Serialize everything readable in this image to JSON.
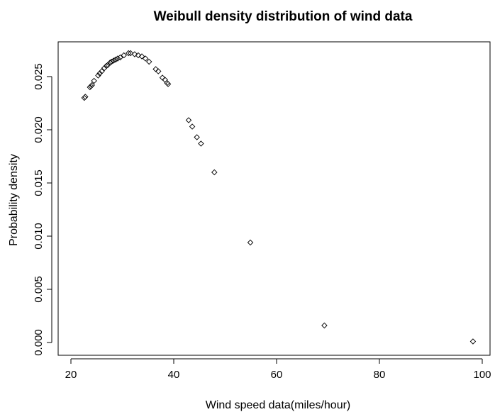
{
  "chart_data": {
    "type": "scatter",
    "title": "Weibull density distribution of wind data",
    "xlabel": "Wind speed data(miles/hour)",
    "ylabel": "Probability density",
    "xlim": [
      20,
      100
    ],
    "ylim": [
      0,
      0.027
    ],
    "x_ticks": [
      20,
      40,
      60,
      80,
      100
    ],
    "x_tick_labels": [
      "20",
      "40",
      "60",
      "80",
      "100"
    ],
    "y_ticks": [
      0.0,
      0.005,
      0.01,
      0.015,
      0.02,
      0.025
    ],
    "y_tick_labels": [
      "0.000",
      "0.005",
      "0.010",
      "0.015",
      "0.020",
      "0.025"
    ],
    "marker": "open-diamond",
    "grid": false,
    "series": [
      {
        "points": [
          {
            "x": 22.6,
            "y": 0.023
          },
          {
            "x": 22.8,
            "y": 0.0231
          },
          {
            "x": 23.7,
            "y": 0.024
          },
          {
            "x": 23.9,
            "y": 0.0241
          },
          {
            "x": 24.1,
            "y": 0.0242
          },
          {
            "x": 24.5,
            "y": 0.0246
          },
          {
            "x": 25.3,
            "y": 0.0251
          },
          {
            "x": 25.6,
            "y": 0.0253
          },
          {
            "x": 26.0,
            "y": 0.0255
          },
          {
            "x": 26.5,
            "y": 0.0258
          },
          {
            "x": 26.9,
            "y": 0.026
          },
          {
            "x": 27.2,
            "y": 0.0261
          },
          {
            "x": 27.6,
            "y": 0.0263
          },
          {
            "x": 27.9,
            "y": 0.0264
          },
          {
            "x": 28.3,
            "y": 0.0265
          },
          {
            "x": 28.7,
            "y": 0.0266
          },
          {
            "x": 29.1,
            "y": 0.0267
          },
          {
            "x": 29.6,
            "y": 0.0268
          },
          {
            "x": 30.3,
            "y": 0.027
          },
          {
            "x": 31.2,
            "y": 0.0272
          },
          {
            "x": 31.6,
            "y": 0.0272
          },
          {
            "x": 32.4,
            "y": 0.0271
          },
          {
            "x": 33.1,
            "y": 0.027
          },
          {
            "x": 33.8,
            "y": 0.0269
          },
          {
            "x": 34.5,
            "y": 0.0267
          },
          {
            "x": 35.2,
            "y": 0.0264
          },
          {
            "x": 36.5,
            "y": 0.0257
          },
          {
            "x": 37.0,
            "y": 0.0255
          },
          {
            "x": 37.8,
            "y": 0.0249
          },
          {
            "x": 38.3,
            "y": 0.0247
          },
          {
            "x": 38.7,
            "y": 0.0244
          },
          {
            "x": 38.9,
            "y": 0.0243
          },
          {
            "x": 42.9,
            "y": 0.0209
          },
          {
            "x": 43.6,
            "y": 0.0203
          },
          {
            "x": 44.5,
            "y": 0.0193
          },
          {
            "x": 45.3,
            "y": 0.0187
          },
          {
            "x": 47.9,
            "y": 0.016
          },
          {
            "x": 54.9,
            "y": 0.0094
          },
          {
            "x": 69.3,
            "y": 0.0016
          },
          {
            "x": 98.2,
            "y": 0.0001
          }
        ]
      }
    ]
  }
}
